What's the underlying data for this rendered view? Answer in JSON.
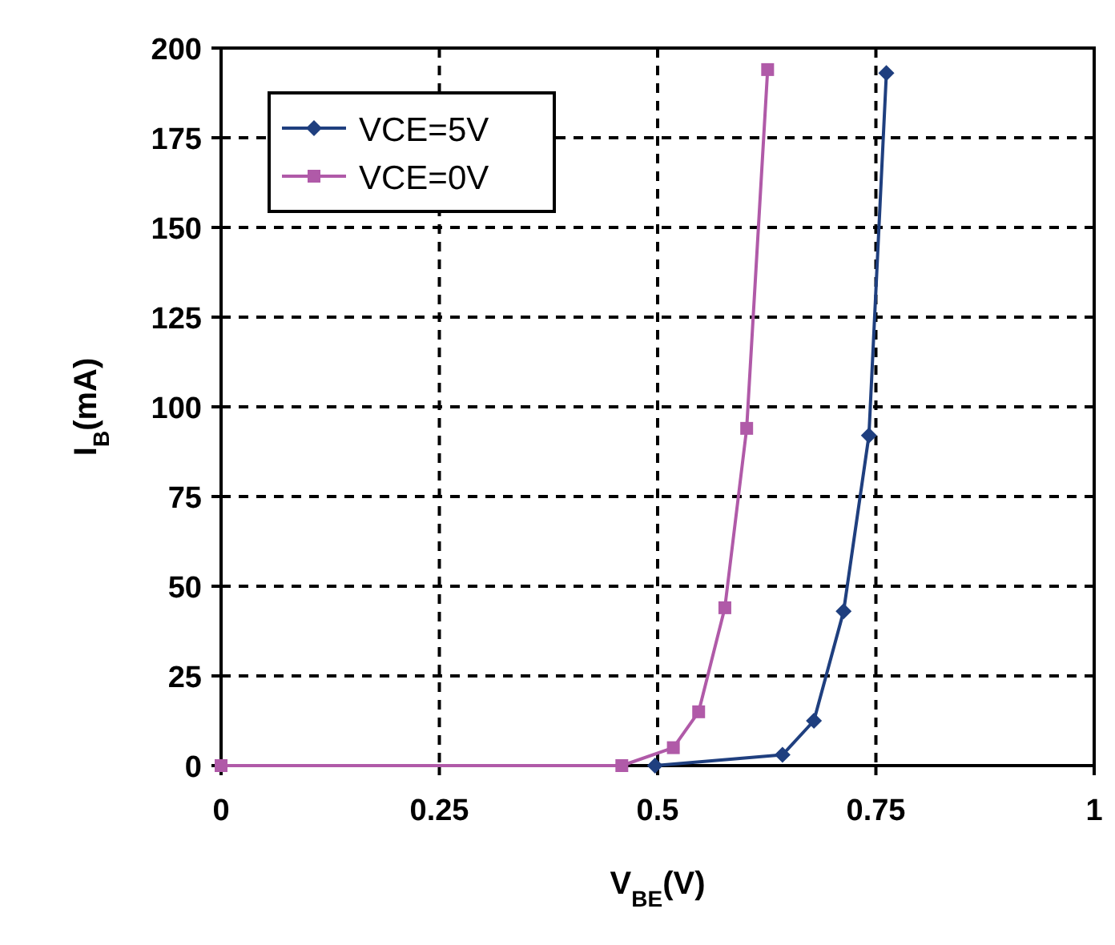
{
  "chart_data": {
    "type": "line",
    "xlabel": "V$_{BE}$(V)",
    "ylabel": "I$_{B}$(mA)",
    "xlim": [
      0,
      1
    ],
    "xticks": [
      0,
      0.25,
      0.5,
      0.75,
      1
    ],
    "ylim": [
      0,
      200
    ],
    "yticks": [
      0,
      25,
      50,
      75,
      100,
      125,
      150,
      175,
      200
    ],
    "grid": true,
    "legend": "top left",
    "series": [
      {
        "name": "VCE=5V",
        "color": "#1f3f7f",
        "marker": "diamond",
        "x": [
          0.497,
          0.643,
          0.679,
          0.713,
          0.742,
          0.762
        ],
        "values": [
          0,
          3,
          12.5,
          43,
          92,
          193
        ]
      },
      {
        "name": "VCE=0V",
        "color": "#b05aa8",
        "marker": "square",
        "x": [
          0,
          0.459,
          0.518,
          0.547,
          0.577,
          0.602,
          0.626
        ],
        "values": [
          0,
          0,
          5,
          15,
          44,
          94,
          194
        ]
      }
    ]
  }
}
